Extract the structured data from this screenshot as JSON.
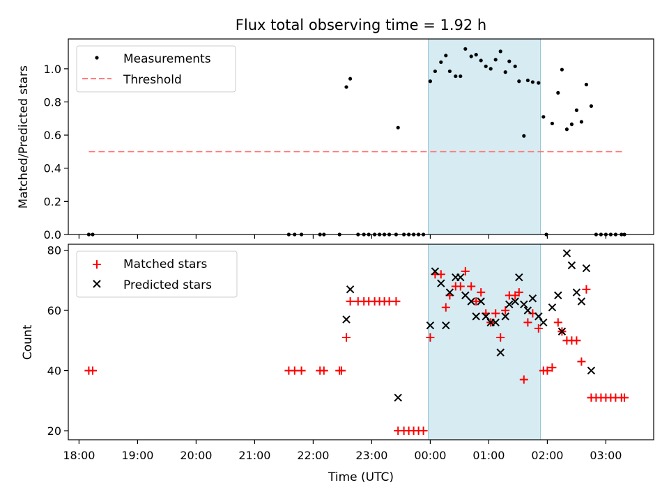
{
  "chart_data": [
    {
      "type": "scatter",
      "title": "Flux total observing time = 1.92 h",
      "xlabel": "",
      "ylabel": "Matched/Predicted stars",
      "xlim": [
        "17:49",
        "03:49"
      ],
      "ylim": [
        0,
        1.18
      ],
      "yticks": [
        "0.0",
        "0.2",
        "0.4",
        "0.6",
        "0.8",
        "1.0"
      ],
      "shaded_interval": [
        "23:58",
        "01:53"
      ],
      "legend": {
        "placement": "top-left",
        "entries": [
          {
            "label": "Measurements",
            "marker": "dot",
            "color": "#000000"
          },
          {
            "label": "Threshold",
            "marker": "dashed-line",
            "color": "#ff7f7f"
          }
        ]
      },
      "threshold": {
        "value": 0.5,
        "x_range": [
          "18:10",
          "03:17"
        ]
      },
      "series": [
        {
          "name": "Measurements",
          "color": "#000000",
          "points": [
            [
              "18:10",
              0
            ],
            [
              "18:14",
              0
            ],
            [
              "21:35",
              0
            ],
            [
              "21:41",
              0
            ],
            [
              "21:48",
              0
            ],
            [
              "22:07",
              0
            ],
            [
              "22:11",
              0
            ],
            [
              "22:27",
              0
            ],
            [
              "22:34",
              0.89
            ],
            [
              "22:38",
              0.94
            ],
            [
              "22:46",
              0
            ],
            [
              "22:52",
              0
            ],
            [
              "22:57",
              0
            ],
            [
              "23:03",
              0
            ],
            [
              "23:08",
              0
            ],
            [
              "23:13",
              0
            ],
            [
              "23:18",
              0
            ],
            [
              "23:25",
              0
            ],
            [
              "23:27",
              0.645
            ],
            [
              "23:33",
              0
            ],
            [
              "23:38",
              0
            ],
            [
              "23:43",
              0
            ],
            [
              "23:48",
              0
            ],
            [
              "23:53",
              0
            ],
            [
              "00:00",
              0.925
            ],
            [
              "00:05",
              0.985
            ],
            [
              "00:11",
              1.04
            ],
            [
              "00:16",
              1.08
            ],
            [
              "00:20",
              0.985
            ],
            [
              "00:26",
              0.955
            ],
            [
              "00:31",
              0.955
            ],
            [
              "00:36",
              1.12
            ],
            [
              "00:42",
              1.075
            ],
            [
              "00:47",
              1.085
            ],
            [
              "00:52",
              1.05
            ],
            [
              "00:57",
              1.015
            ],
            [
              "01:02",
              1.0
            ],
            [
              "01:07",
              1.055
            ],
            [
              "01:12",
              1.105
            ],
            [
              "01:17",
              0.98
            ],
            [
              "01:21",
              1.045
            ],
            [
              "01:27",
              1.015
            ],
            [
              "01:31",
              0.925
            ],
            [
              "01:36",
              0.595
            ],
            [
              "01:40",
              0.93
            ],
            [
              "01:45",
              0.92
            ],
            [
              "01:51",
              0.915
            ],
            [
              "01:56",
              0.71
            ],
            [
              "01:59",
              0
            ],
            [
              "02:05",
              0.67
            ],
            [
              "02:11",
              0.855
            ],
            [
              "02:15",
              0.995
            ],
            [
              "02:20",
              0.635
            ],
            [
              "02:25",
              0.665
            ],
            [
              "02:30",
              0.75
            ],
            [
              "02:35",
              0.68
            ],
            [
              "02:40",
              0.905
            ],
            [
              "02:45",
              0.775
            ],
            [
              "02:50",
              0
            ],
            [
              "02:55",
              0
            ],
            [
              "03:00",
              0
            ],
            [
              "03:05",
              0
            ],
            [
              "03:10",
              0
            ],
            [
              "03:16",
              0
            ],
            [
              "03:19",
              0
            ]
          ]
        }
      ]
    },
    {
      "type": "scatter",
      "title": "",
      "xlabel": "Time (UTC)",
      "ylabel": "Count",
      "xlim": [
        "17:49",
        "03:49"
      ],
      "ylim": [
        17,
        82
      ],
      "yticks": [
        "20",
        "40",
        "60",
        "80"
      ],
      "xticks": [
        "18:00",
        "19:00",
        "20:00",
        "21:00",
        "22:00",
        "23:00",
        "00:00",
        "01:00",
        "02:00",
        "03:00"
      ],
      "shaded_interval": [
        "23:58",
        "01:53"
      ],
      "legend": {
        "placement": "top-left",
        "entries": [
          {
            "label": "Matched stars",
            "marker": "plus",
            "color": "#ff0000"
          },
          {
            "label": "Predicted stars",
            "marker": "x",
            "color": "#000000"
          }
        ]
      },
      "series": [
        {
          "name": "Matched stars",
          "marker": "plus",
          "color": "#ff0000",
          "points": [
            [
              "18:10",
              40
            ],
            [
              "18:14",
              40
            ],
            [
              "21:35",
              40
            ],
            [
              "21:41",
              40
            ],
            [
              "21:48",
              40
            ],
            [
              "22:07",
              40
            ],
            [
              "22:11",
              40
            ],
            [
              "22:27",
              40
            ],
            [
              "22:29",
              40
            ],
            [
              "22:34",
              51
            ],
            [
              "22:38",
              63
            ],
            [
              "22:46",
              63
            ],
            [
              "22:52",
              63
            ],
            [
              "22:57",
              63
            ],
            [
              "23:03",
              63
            ],
            [
              "23:08",
              63
            ],
            [
              "23:13",
              63
            ],
            [
              "23:18",
              63
            ],
            [
              "23:25",
              63
            ],
            [
              "23:27",
              20
            ],
            [
              "23:33",
              20
            ],
            [
              "23:38",
              20
            ],
            [
              "23:43",
              20
            ],
            [
              "23:48",
              20
            ],
            [
              "23:53",
              20
            ],
            [
              "00:00",
              51
            ],
            [
              "00:05",
              72
            ],
            [
              "00:11",
              72
            ],
            [
              "00:16",
              61
            ],
            [
              "00:20",
              65
            ],
            [
              "00:26",
              68
            ],
            [
              "00:31",
              68
            ],
            [
              "00:36",
              73
            ],
            [
              "00:42",
              68
            ],
            [
              "00:47",
              63
            ],
            [
              "00:52",
              66
            ],
            [
              "00:57",
              59
            ],
            [
              "01:02",
              56
            ],
            [
              "01:07",
              59
            ],
            [
              "01:12",
              51
            ],
            [
              "01:17",
              60
            ],
            [
              "01:21",
              65
            ],
            [
              "01:27",
              65
            ],
            [
              "01:31",
              66
            ],
            [
              "01:36",
              37
            ],
            [
              "01:40",
              56
            ],
            [
              "01:45",
              59
            ],
            [
              "01:51",
              54
            ],
            [
              "01:56",
              40
            ],
            [
              "02:00",
              40
            ],
            [
              "02:05",
              41
            ],
            [
              "02:11",
              56
            ],
            [
              "02:15",
              53
            ],
            [
              "02:20",
              50
            ],
            [
              "02:25",
              50
            ],
            [
              "02:30",
              50
            ],
            [
              "02:35",
              43
            ],
            [
              "02:40",
              67
            ],
            [
              "02:45",
              31
            ],
            [
              "02:50",
              31
            ],
            [
              "02:55",
              31
            ],
            [
              "03:00",
              31
            ],
            [
              "03:05",
              31
            ],
            [
              "03:10",
              31
            ],
            [
              "03:16",
              31
            ],
            [
              "03:19",
              31
            ]
          ]
        },
        {
          "name": "Predicted stars",
          "marker": "x",
          "color": "#000000",
          "points": [
            [
              "22:34",
              57
            ],
            [
              "22:38",
              67
            ],
            [
              "23:27",
              31
            ],
            [
              "00:00",
              55
            ],
            [
              "00:05",
              73
            ],
            [
              "00:11",
              69
            ],
            [
              "00:16",
              55
            ],
            [
              "00:20",
              66
            ],
            [
              "00:26",
              71
            ],
            [
              "00:31",
              71
            ],
            [
              "00:36",
              65
            ],
            [
              "00:42",
              63
            ],
            [
              "00:47",
              58
            ],
            [
              "00:52",
              63
            ],
            [
              "00:57",
              58
            ],
            [
              "01:02",
              56
            ],
            [
              "01:07",
              56
            ],
            [
              "01:12",
              46
            ],
            [
              "01:17",
              58
            ],
            [
              "01:21",
              62
            ],
            [
              "01:27",
              63
            ],
            [
              "01:31",
              71
            ],
            [
              "01:36",
              62
            ],
            [
              "01:40",
              60
            ],
            [
              "01:45",
              64
            ],
            [
              "01:51",
              58
            ],
            [
              "01:56",
              56
            ],
            [
              "02:05",
              61
            ],
            [
              "02:11",
              65
            ],
            [
              "02:15",
              53
            ],
            [
              "02:20",
              79
            ],
            [
              "02:25",
              75
            ],
            [
              "02:30",
              66
            ],
            [
              "02:35",
              63
            ],
            [
              "02:40",
              74
            ],
            [
              "02:45",
              40
            ]
          ]
        }
      ]
    }
  ]
}
